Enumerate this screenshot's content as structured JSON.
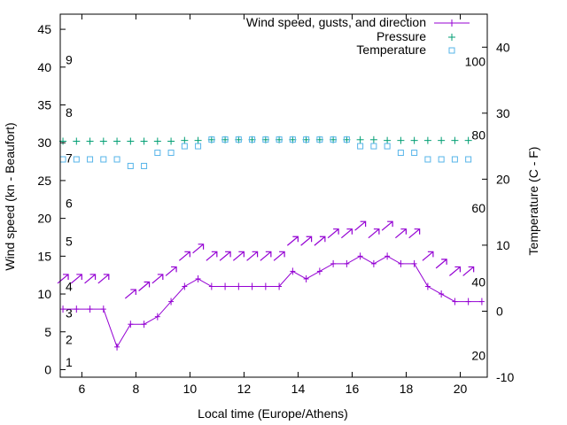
{
  "colors": {
    "wind": "#9400d3",
    "pressure": "#009e73",
    "temperature": "#56b4e9"
  },
  "chart_data": {
    "type": "line",
    "title": "",
    "xlabel": "Local time (Europe/Athens)",
    "ylabel": "Wind speed (kn - Beaufort)",
    "y2label": "Temperature (C - F)",
    "xlim": [
      5.2,
      21.0
    ],
    "ylim": [
      -1,
      47
    ],
    "y2lim": [
      -10,
      45
    ],
    "x_ticks": [
      "6",
      "8",
      "10",
      "12",
      "14",
      "16",
      "18",
      "20"
    ],
    "y_ticks": [
      "0",
      "5",
      "10",
      "15",
      "20",
      "25",
      "30",
      "35",
      "40",
      "45"
    ],
    "y2_ticks": [
      "-10",
      "0",
      "10",
      "20",
      "30",
      "40"
    ],
    "beaufort_labels": [
      {
        "label": "1",
        "kn": 1
      },
      {
        "label": "2",
        "kn": 4
      },
      {
        "label": "3",
        "kn": 7.5
      },
      {
        "label": "4",
        "kn": 11
      },
      {
        "label": "5",
        "kn": 17
      },
      {
        "label": "6",
        "kn": 22
      },
      {
        "label": "7",
        "kn": 28
      },
      {
        "label": "8",
        "kn": 34
      },
      {
        "label": "9",
        "kn": 41
      }
    ],
    "fahrenheit_labels": [
      {
        "label": "20",
        "temp_c": -6.7
      },
      {
        "label": "40",
        "temp_c": 4.4
      },
      {
        "label": "60",
        "temp_c": 15.6
      },
      {
        "label": "80",
        "temp_c": 26.7
      },
      {
        "label": "100",
        "temp_c": 37.8
      }
    ],
    "legend": {
      "wind": "Wind speed, gusts, and direction",
      "pressure": "Pressure",
      "temperature": "Temperature"
    },
    "series": [
      {
        "name": "Wind speed",
        "x": [
          5.3,
          5.8,
          6.3,
          6.8,
          7.3,
          7.8,
          8.3,
          8.8,
          9.3,
          9.8,
          10.3,
          10.8,
          11.3,
          11.8,
          12.3,
          12.8,
          13.3,
          13.8,
          14.3,
          14.8,
          15.3,
          15.8,
          16.3,
          16.8,
          17.3,
          17.8,
          18.3,
          18.8,
          19.3,
          19.8,
          20.3,
          20.8
        ],
        "values": [
          8,
          8,
          8,
          8,
          3,
          6,
          6,
          7,
          9,
          11,
          12,
          11,
          11,
          11,
          11,
          11,
          11,
          13,
          12,
          13,
          14,
          14,
          15,
          14,
          15,
          14,
          14,
          11,
          10,
          9,
          9,
          9
        ]
      },
      {
        "name": "Gusts",
        "x": [
          5.3,
          5.8,
          6.3,
          6.8,
          7.8,
          8.3,
          8.8,
          9.3,
          9.8,
          10.3,
          10.8,
          11.3,
          11.8,
          12.3,
          12.8,
          13.3,
          13.8,
          14.3,
          14.8,
          15.3,
          15.8,
          16.3,
          16.8,
          17.3,
          17.8,
          18.3,
          18.8,
          19.3,
          19.8,
          20.3
        ],
        "values": [
          12,
          12,
          12,
          12,
          10,
          11,
          12,
          13,
          15,
          16,
          15,
          15,
          15,
          15,
          15,
          15,
          17,
          17,
          17,
          18,
          18,
          19,
          18,
          19,
          18,
          18,
          15,
          14,
          13,
          13
        ]
      },
      {
        "name": "Pressure",
        "x": [
          5.3,
          5.8,
          6.3,
          6.8,
          7.3,
          7.8,
          8.3,
          8.8,
          9.3,
          9.8,
          10.3,
          10.8,
          11.3,
          11.8,
          12.3,
          12.8,
          13.3,
          13.8,
          14.3,
          14.8,
          15.3,
          15.8,
          16.3,
          16.8,
          17.3,
          17.8,
          18.3,
          18.8,
          19.3,
          19.8,
          20.3
        ],
        "values": [
          30.2,
          30.2,
          30.2,
          30.2,
          30.2,
          30.2,
          30.2,
          30.2,
          30.2,
          30.3,
          30.3,
          30.4,
          30.4,
          30.4,
          30.4,
          30.4,
          30.4,
          30.4,
          30.4,
          30.4,
          30.4,
          30.4,
          30.4,
          30.4,
          30.3,
          30.3,
          30.3,
          30.3,
          30.3,
          30.3,
          30.3
        ]
      },
      {
        "name": "Temperature",
        "x": [
          5.3,
          5.8,
          6.3,
          6.8,
          7.3,
          7.8,
          8.3,
          8.8,
          9.3,
          9.8,
          10.3,
          10.8,
          11.3,
          11.8,
          12.3,
          12.8,
          13.3,
          13.8,
          14.3,
          14.8,
          15.3,
          15.8,
          16.3,
          16.8,
          17.3,
          17.8,
          18.3,
          18.8,
          19.3,
          19.8,
          20.3
        ],
        "values": [
          23,
          23,
          23,
          23,
          23,
          22,
          22,
          24,
          24,
          25,
          25,
          26,
          26,
          26,
          26,
          26,
          26,
          26,
          26,
          26,
          26,
          26,
          25,
          25,
          25,
          24,
          24,
          23,
          23,
          23,
          23
        ]
      }
    ]
  }
}
